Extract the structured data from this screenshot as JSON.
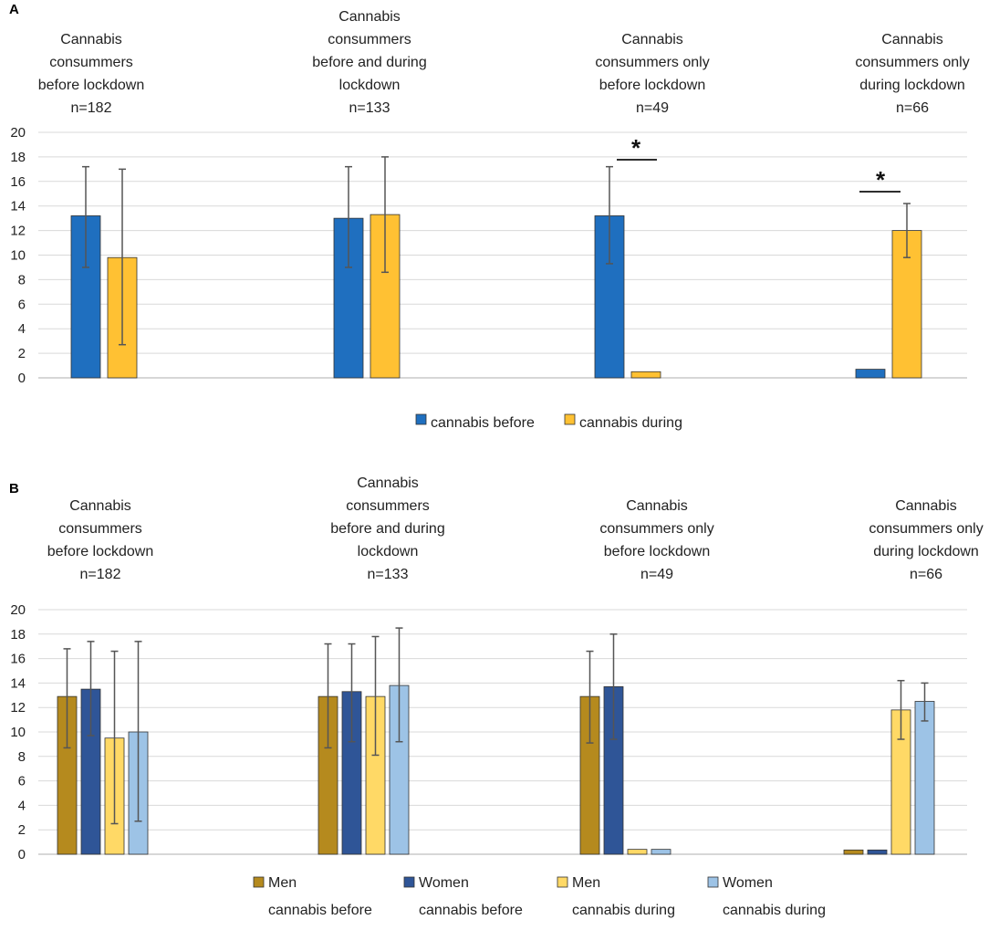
{
  "chart_data": [
    {
      "type": "bar",
      "panel_label": "A",
      "ylim": [
        0,
        20
      ],
      "yticks": [
        "0",
        "2",
        "4",
        "6",
        "8",
        "10",
        "12",
        "14",
        "16",
        "18",
        "20"
      ],
      "grid": true,
      "groups": [
        {
          "title": [
            "Cannabis",
            "consummers",
            "before lockdown",
            "n=182"
          ]
        },
        {
          "title": [
            "Cannabis",
            "consummers",
            "before and during",
            "lockdown",
            "n=133"
          ]
        },
        {
          "title": [
            "Cannabis",
            "consummers only",
            "before lockdown",
            "n=49"
          ]
        },
        {
          "title": [
            "Cannabis",
            "consummers only",
            "during lockdown",
            "n=66"
          ]
        }
      ],
      "series": [
        {
          "name": "cannabis before",
          "color": "#1f6fbf",
          "values": [
            13.2,
            13.0,
            13.2,
            0.7
          ],
          "err_low": [
            9.0,
            9.0,
            9.3,
            null
          ],
          "err_high": [
            17.2,
            17.2,
            17.2,
            null
          ]
        },
        {
          "name": "cannabis during",
          "color": "#ffc133",
          "values": [
            9.8,
            13.3,
            0.5,
            12.0
          ],
          "err_low": [
            2.7,
            8.6,
            null,
            9.8
          ],
          "err_high": [
            17.0,
            18.0,
            null,
            14.2
          ]
        }
      ],
      "annotations": [
        {
          "group": 2,
          "text": "*",
          "y": 18.0
        },
        {
          "group": 3,
          "text": "*",
          "y": 15.2
        }
      ],
      "legend": {
        "position": "bottom",
        "items": [
          {
            "label": "cannabis before",
            "color": "#1f6fbf"
          },
          {
            "label": "cannabis during",
            "color": "#ffc133"
          }
        ]
      }
    },
    {
      "type": "bar",
      "panel_label": "B",
      "ylim": [
        0,
        20
      ],
      "yticks": [
        "0",
        "2",
        "4",
        "6",
        "8",
        "10",
        "12",
        "14",
        "16",
        "18",
        "20"
      ],
      "grid": true,
      "groups": [
        {
          "title": [
            "Cannabis",
            "consummers",
            "before lockdown",
            "n=182"
          ]
        },
        {
          "title": [
            "Cannabis",
            "consummers",
            "before and during",
            "lockdown",
            "n=133"
          ]
        },
        {
          "title": [
            "Cannabis",
            "consummers only",
            "before lockdown",
            "n=49"
          ]
        },
        {
          "title": [
            "Cannabis",
            "consummers only",
            "during lockdown",
            "n=66"
          ]
        }
      ],
      "series": [
        {
          "name": "Men cannabis before",
          "color": "#b58a1e",
          "values": [
            12.9,
            12.9,
            12.9,
            0.35
          ],
          "err_low": [
            8.7,
            8.7,
            9.1,
            null
          ],
          "err_high": [
            16.8,
            17.2,
            16.6,
            null
          ]
        },
        {
          "name": "Women cannabis before",
          "color": "#2f5597",
          "values": [
            13.5,
            13.3,
            13.7,
            0.35
          ],
          "err_low": [
            9.7,
            9.2,
            9.4,
            null
          ],
          "err_high": [
            17.4,
            17.2,
            18.0,
            null
          ]
        },
        {
          "name": "Men cannabis during",
          "color": "#ffd966",
          "values": [
            9.5,
            12.9,
            0.4,
            11.8
          ],
          "err_low": [
            2.5,
            8.1,
            null,
            9.4
          ],
          "err_high": [
            16.6,
            17.8,
            null,
            14.2
          ]
        },
        {
          "name": "Women cannabis during",
          "color": "#9dc3e6",
          "values": [
            10.0,
            13.8,
            0.4,
            12.5
          ],
          "err_low": [
            2.7,
            9.2,
            null,
            10.9
          ],
          "err_high": [
            17.4,
            18.5,
            null,
            14.0
          ]
        }
      ],
      "legend": {
        "position": "bottom",
        "items": [
          {
            "label": [
              "Men",
              "cannabis before"
            ],
            "color": "#b58a1e"
          },
          {
            "label": [
              "Women",
              "cannabis before"
            ],
            "color": "#2f5597"
          },
          {
            "label": [
              "Men",
              "cannabis during"
            ],
            "color": "#ffd966"
          },
          {
            "label": [
              "Women",
              "cannabis during"
            ],
            "color": "#9dc3e6"
          }
        ]
      }
    }
  ]
}
